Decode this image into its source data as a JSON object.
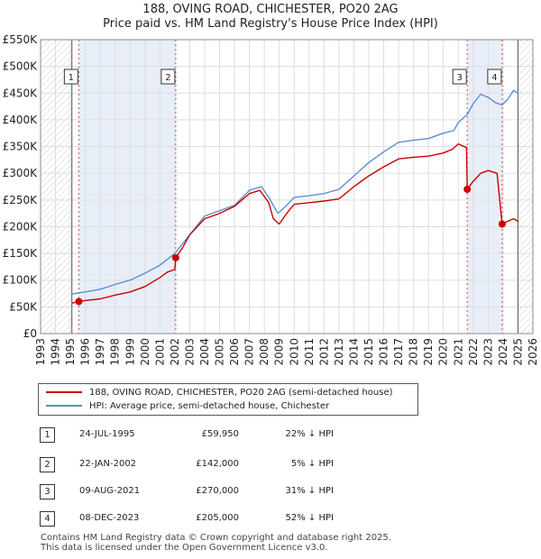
{
  "title_line1": "188, OVING ROAD, CHICHESTER, PO20 2AG",
  "title_line2": "Price paid vs. HM Land Registry's House Price Index (HPI)",
  "colors": {
    "price_paid": "#cc0000",
    "hpi": "#5b8fd6",
    "shade": "#e8eef8",
    "grid": "#dddddd"
  },
  "legend": {
    "price_label": "188, OVING ROAD, CHICHESTER, PO20 2AG (semi-detached house)",
    "hpi_label": "HPI: Average price, semi-detached house, Chichester"
  },
  "transactions": [
    {
      "num": "1",
      "date": "24-JUL-1995",
      "price": "£59,950",
      "hpi_diff": "22% ↓ HPI"
    },
    {
      "num": "2",
      "date": "22-JAN-2002",
      "price": "£142,000",
      "hpi_diff": "5% ↓ HPI"
    },
    {
      "num": "3",
      "date": "09-AUG-2021",
      "price": "£270,000",
      "hpi_diff": "31% ↓ HPI"
    },
    {
      "num": "4",
      "date": "08-DEC-2023",
      "price": "£205,000",
      "hpi_diff": "52% ↓ HPI"
    }
  ],
  "footer_line1": "Contains HM Land Registry data © Crown copyright and database right 2025.",
  "footer_line2": "This data is licensed under the Open Government Licence v3.0.",
  "chart_data": {
    "type": "line",
    "title": "188, OVING ROAD, CHICHESTER, PO20 2AG",
    "subtitle": "Price paid vs. HM Land Registry's House Price Index (HPI)",
    "xlabel": "",
    "ylabel": "",
    "xlim": [
      1993,
      2026
    ],
    "ylim": [
      0,
      550000
    ],
    "y_ticks": [
      0,
      50000,
      100000,
      150000,
      200000,
      250000,
      300000,
      350000,
      400000,
      450000,
      500000,
      550000
    ],
    "y_tick_labels": [
      "£0",
      "£50K",
      "£100K",
      "£150K",
      "£200K",
      "£250K",
      "£300K",
      "£350K",
      "£400K",
      "£450K",
      "£500K",
      "£550K"
    ],
    "x_ticks": [
      1993,
      1994,
      1995,
      1996,
      1997,
      1998,
      1999,
      2000,
      2001,
      2002,
      2003,
      2004,
      2005,
      2006,
      2007,
      2008,
      2009,
      2010,
      2011,
      2012,
      2013,
      2014,
      2015,
      2016,
      2017,
      2018,
      2019,
      2020,
      2021,
      2022,
      2023,
      2024,
      2025,
      2026
    ],
    "x_tick_labels": [
      "1993",
      "1994",
      "1995",
      "1996",
      "1997",
      "1998",
      "1999",
      "2000",
      "2001",
      "2002",
      "2003",
      "2004",
      "2005",
      "2006",
      "2007",
      "2008",
      "2009",
      "2010",
      "2011",
      "2012",
      "2013",
      "2014",
      "2015",
      "2016",
      "2017",
      "2018",
      "2019",
      "2020",
      "2021",
      "2022",
      "2023",
      "2024",
      "2025",
      "2026"
    ],
    "grid": true,
    "hatched_ranges": [
      [
        1993,
        1995.1
      ],
      [
        2025.0,
        2026
      ]
    ],
    "shaded_ranges": [
      [
        1995.56,
        2002.06
      ],
      [
        2021.6,
        2023.94
      ]
    ],
    "series": [
      {
        "name": "188, OVING ROAD, CHICHESTER, PO20 2AG (semi-detached house)",
        "color": "#cc0000",
        "points": [
          [
            1995.1,
            57000
          ],
          [
            1995.56,
            59950
          ],
          [
            1996,
            62000
          ],
          [
            1997,
            65000
          ],
          [
            1998,
            72000
          ],
          [
            1999,
            78000
          ],
          [
            2000,
            88000
          ],
          [
            2001,
            105000
          ],
          [
            2001.5,
            115000
          ],
          [
            2002.0,
            120000
          ],
          [
            2002.06,
            142000
          ],
          [
            2002.5,
            160000
          ],
          [
            2003,
            185000
          ],
          [
            2004,
            215000
          ],
          [
            2005,
            225000
          ],
          [
            2006,
            238000
          ],
          [
            2007,
            262000
          ],
          [
            2007.7,
            268000
          ],
          [
            2008.3,
            245000
          ],
          [
            2008.6,
            215000
          ],
          [
            2009.0,
            205000
          ],
          [
            2009.5,
            225000
          ],
          [
            2010,
            242000
          ],
          [
            2011,
            245000
          ],
          [
            2012,
            248000
          ],
          [
            2013,
            252000
          ],
          [
            2014,
            275000
          ],
          [
            2015,
            295000
          ],
          [
            2016,
            312000
          ],
          [
            2017,
            327000
          ],
          [
            2018,
            330000
          ],
          [
            2019,
            332000
          ],
          [
            2020,
            338000
          ],
          [
            2020.6,
            345000
          ],
          [
            2021.0,
            355000
          ],
          [
            2021.55,
            348000
          ],
          [
            2021.6,
            270000
          ],
          [
            2022.0,
            285000
          ],
          [
            2022.5,
            300000
          ],
          [
            2023,
            305000
          ],
          [
            2023.6,
            300000
          ],
          [
            2023.94,
            205000
          ],
          [
            2024.3,
            210000
          ],
          [
            2024.7,
            215000
          ],
          [
            2025.0,
            210000
          ]
        ]
      },
      {
        "name": "HPI: Average price, semi-detached house, Chichester",
        "color": "#5b8fd6",
        "points": [
          [
            1995.1,
            74000
          ],
          [
            1996,
            78000
          ],
          [
            1997,
            83000
          ],
          [
            1998,
            92000
          ],
          [
            1999,
            100000
          ],
          [
            2000,
            113000
          ],
          [
            2001,
            128000
          ],
          [
            2002,
            150000
          ],
          [
            2003,
            185000
          ],
          [
            2004,
            220000
          ],
          [
            2005,
            230000
          ],
          [
            2006,
            240000
          ],
          [
            2007,
            268000
          ],
          [
            2007.8,
            275000
          ],
          [
            2008.3,
            255000
          ],
          [
            2008.9,
            225000
          ],
          [
            2009.5,
            240000
          ],
          [
            2010,
            255000
          ],
          [
            2011,
            258000
          ],
          [
            2012,
            262000
          ],
          [
            2013,
            270000
          ],
          [
            2014,
            295000
          ],
          [
            2015,
            320000
          ],
          [
            2016,
            340000
          ],
          [
            2017,
            358000
          ],
          [
            2018,
            362000
          ],
          [
            2019,
            365000
          ],
          [
            2020,
            375000
          ],
          [
            2020.7,
            380000
          ],
          [
            2021,
            395000
          ],
          [
            2021.6,
            410000
          ],
          [
            2022,
            430000
          ],
          [
            2022.5,
            448000
          ],
          [
            2023,
            442000
          ],
          [
            2023.5,
            432000
          ],
          [
            2023.94,
            428000
          ],
          [
            2024.3,
            438000
          ],
          [
            2024.7,
            455000
          ],
          [
            2025.0,
            450000
          ]
        ]
      }
    ],
    "markers": [
      {
        "label": "1",
        "x": 1995.56,
        "y": 59950
      },
      {
        "label": "2",
        "x": 2002.06,
        "y": 142000
      },
      {
        "label": "3",
        "x": 2021.6,
        "y": 270000
      },
      {
        "label": "4",
        "x": 2023.94,
        "y": 205000
      }
    ]
  }
}
